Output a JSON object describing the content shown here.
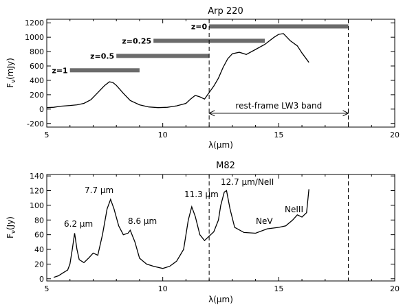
{
  "chart_data": [
    {
      "type": "line",
      "title": "Arp 220",
      "xlabel": "λ(μm)",
      "ylabel": "F_ν(mJy)",
      "xlim": [
        5,
        20
      ],
      "ylim": [
        -250,
        1250
      ],
      "xticks": [
        5,
        10,
        15,
        20
      ],
      "yticks": [
        -200,
        0,
        200,
        400,
        600,
        800,
        1000,
        1200
      ],
      "grid": false,
      "series": [
        {
          "x": [
            5.0,
            5.3,
            5.6,
            6.0,
            6.3,
            6.6,
            6.9,
            7.2,
            7.5,
            7.7,
            7.85,
            8.0,
            8.3,
            8.6,
            9.0,
            9.4,
            9.8,
            10.2,
            10.6,
            11.0,
            11.2,
            11.4,
            11.6,
            11.8,
            12.0,
            12.2,
            12.4,
            12.6,
            12.8,
            13.0,
            13.3,
            13.6,
            14.0,
            14.4,
            14.8,
            15.0,
            15.2,
            15.5,
            15.8,
            16.0,
            16.3
          ],
          "y": [
            20,
            25,
            40,
            50,
            60,
            80,
            130,
            230,
            330,
            380,
            370,
            330,
            220,
            120,
            60,
            30,
            20,
            25,
            45,
            80,
            140,
            190,
            170,
            140,
            230,
            320,
            430,
            580,
            700,
            770,
            790,
            760,
            830,
            900,
            1000,
            1040,
            1050,
            950,
            880,
            780,
            650
          ]
        }
      ],
      "redshift_bars": [
        {
          "label": "z=0",
          "range": [
            12.0,
            18.0
          ],
          "y": 1150
        },
        {
          "label": "z=0.25",
          "range": [
            9.6,
            14.4
          ],
          "y": 950
        },
        {
          "label": "z=0.5",
          "range": [
            8.0,
            12.0
          ],
          "y": 740
        },
        {
          "label": "z=1",
          "range": [
            6.0,
            9.0
          ],
          "y": 540
        }
      ],
      "band": {
        "label": "rest-frame LW3 band",
        "range": [
          12.0,
          18.0
        ],
        "y": 0
      }
    },
    {
      "type": "line",
      "title": "M82",
      "xlabel": "λ(μm)",
      "ylabel": "F_ν(Jy)",
      "xlim": [
        5,
        20
      ],
      "ylim": [
        -3,
        142
      ],
      "xticks": [
        5,
        10,
        15,
        20
      ],
      "yticks": [
        0,
        20,
        40,
        60,
        80,
        100,
        120,
        140
      ],
      "grid": false,
      "series": [
        {
          "x": [
            5.3,
            5.5,
            5.7,
            5.9,
            6.0,
            6.1,
            6.2,
            6.3,
            6.4,
            6.6,
            6.8,
            7.0,
            7.2,
            7.4,
            7.6,
            7.75,
            7.9,
            8.1,
            8.3,
            8.5,
            8.6,
            8.8,
            9.0,
            9.3,
            9.6,
            10.0,
            10.3,
            10.6,
            10.9,
            11.1,
            11.25,
            11.4,
            11.6,
            11.8,
            12.0,
            12.2,
            12.4,
            12.5,
            12.65,
            12.75,
            12.9,
            13.1,
            13.5,
            14.0,
            14.5,
            15.0,
            15.3,
            15.6,
            15.8,
            16.0,
            16.2,
            16.3
          ],
          "y": [
            2,
            4,
            8,
            12,
            20,
            40,
            62,
            40,
            26,
            22,
            28,
            35,
            32,
            60,
            95,
            108,
            95,
            72,
            60,
            62,
            66,
            50,
            28,
            20,
            17,
            14,
            17,
            24,
            40,
            80,
            98,
            85,
            60,
            52,
            58,
            64,
            80,
            100,
            118,
            120,
            95,
            70,
            63,
            62,
            68,
            70,
            72,
            80,
            87,
            84,
            90,
            122
          ]
        }
      ],
      "annotations": [
        "6.2 μm",
        "7.7 μm",
        "8.6 μm",
        "11.3 μm",
        "12.7 μm/NeII",
        "NeV",
        "NeIII"
      ],
      "vlines": [
        12.0,
        18.0
      ]
    }
  ]
}
